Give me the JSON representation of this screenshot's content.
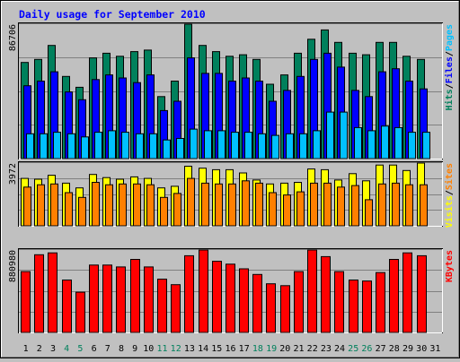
{
  "chart_data": {
    "type": "bar",
    "title": "Daily usage for September 2010",
    "categories": [
      "1",
      "2",
      "3",
      "4",
      "5",
      "6",
      "7",
      "8",
      "9",
      "10",
      "11",
      "12",
      "13",
      "14",
      "15",
      "16",
      "17",
      "18",
      "19",
      "20",
      "21",
      "22",
      "23",
      "24",
      "25",
      "26",
      "27",
      "28",
      "29",
      "30",
      "31"
    ],
    "weekend_days": [
      "4",
      "5",
      "11",
      "12",
      "18",
      "19",
      "25",
      "26"
    ],
    "colors": {
      "title": "#0000ff",
      "hits": "#00805c",
      "files": "#0000ff",
      "pages": "#00c0ff",
      "visits": "#ffff00",
      "sites": "#ff8000",
      "kbytes": "#ff0000",
      "weekday_label": "#000000",
      "weekend_label": "#00805c",
      "panel_bg": "#c0c0c0",
      "gridline": "#808080"
    },
    "panels": [
      {
        "ymax_label": "86706",
        "ymax": 86706,
        "legend": [
          "Pages",
          "/",
          "Files",
          "/",
          "Hits"
        ],
        "series": [
          {
            "name": "Hits",
            "values": [
              62000,
              64000,
              73000,
              53000,
              46000,
              65000,
              68000,
              66000,
              69000,
              70000,
              40000,
              50000,
              86706,
              73000,
              69000,
              66000,
              67000,
              64000,
              48000,
              54000,
              68000,
              77000,
              83000,
              75000,
              68000,
              67000,
              75000,
              75000,
              66000,
              64000,
              0
            ]
          },
          {
            "name": "Files",
            "values": [
              47000,
              50000,
              56000,
              43000,
              38000,
              51000,
              54000,
              52000,
              49000,
              54000,
              31000,
              37000,
              65000,
              55000,
              55000,
              50000,
              52000,
              50000,
              37000,
              44000,
              53000,
              64000,
              68000,
              59000,
              44000,
              40000,
              56000,
              58000,
              50000,
              45000,
              0
            ]
          },
          {
            "name": "Pages",
            "values": [
              16000,
              16000,
              17000,
              16000,
              14000,
              17000,
              18000,
              17000,
              16000,
              16000,
              12000,
              13000,
              19000,
              18000,
              18000,
              17000,
              17000,
              16000,
              15000,
              16000,
              16000,
              18000,
              30000,
              30000,
              20000,
              18000,
              21000,
              20000,
              17000,
              17000,
              0
            ]
          }
        ]
      },
      {
        "ymax_label": "3972",
        "ymax": 3972,
        "legend": [
          "Sites",
          "/",
          "Visits"
        ],
        "series": [
          {
            "name": "Visits",
            "values": [
              3000,
              2950,
              3200,
              2700,
              2400,
              3250,
              3050,
              2950,
              3100,
              3000,
              2400,
              2500,
              3772,
              3650,
              3550,
              3550,
              3350,
              2900,
              2650,
              2700,
              2750,
              3600,
              3550,
              2900,
              3300,
              2850,
              3850,
              3850,
              3500,
              3972,
              0
            ]
          },
          {
            "name": "Sites",
            "values": [
              2450,
              2600,
              2650,
              2100,
              1800,
              2750,
              2600,
              2650,
              2650,
              2600,
              1800,
              2050,
              3000,
              2700,
              2650,
              2650,
              2850,
              2700,
              2100,
              1950,
              2150,
              2700,
              2700,
              2450,
              2550,
              1650,
              2650,
              2700,
              2600,
              2600,
              0
            ]
          }
        ]
      },
      {
        "ymax_label": "880980",
        "ymax": 880980,
        "legend": [
          "KBytes"
        ],
        "series": [
          {
            "name": "KBytes",
            "values": [
              650000,
              830000,
              850000,
              560000,
              430000,
              720000,
              720000,
              700000,
              780000,
              700000,
              570000,
              510000,
              820000,
              880980,
              760000,
              730000,
              680000,
              620000,
              520000,
              500000,
              650000,
              880980,
              810000,
              650000,
              560000,
              550000,
              640000,
              780000,
              850000,
              820000,
              0
            ]
          }
        ]
      }
    ]
  }
}
